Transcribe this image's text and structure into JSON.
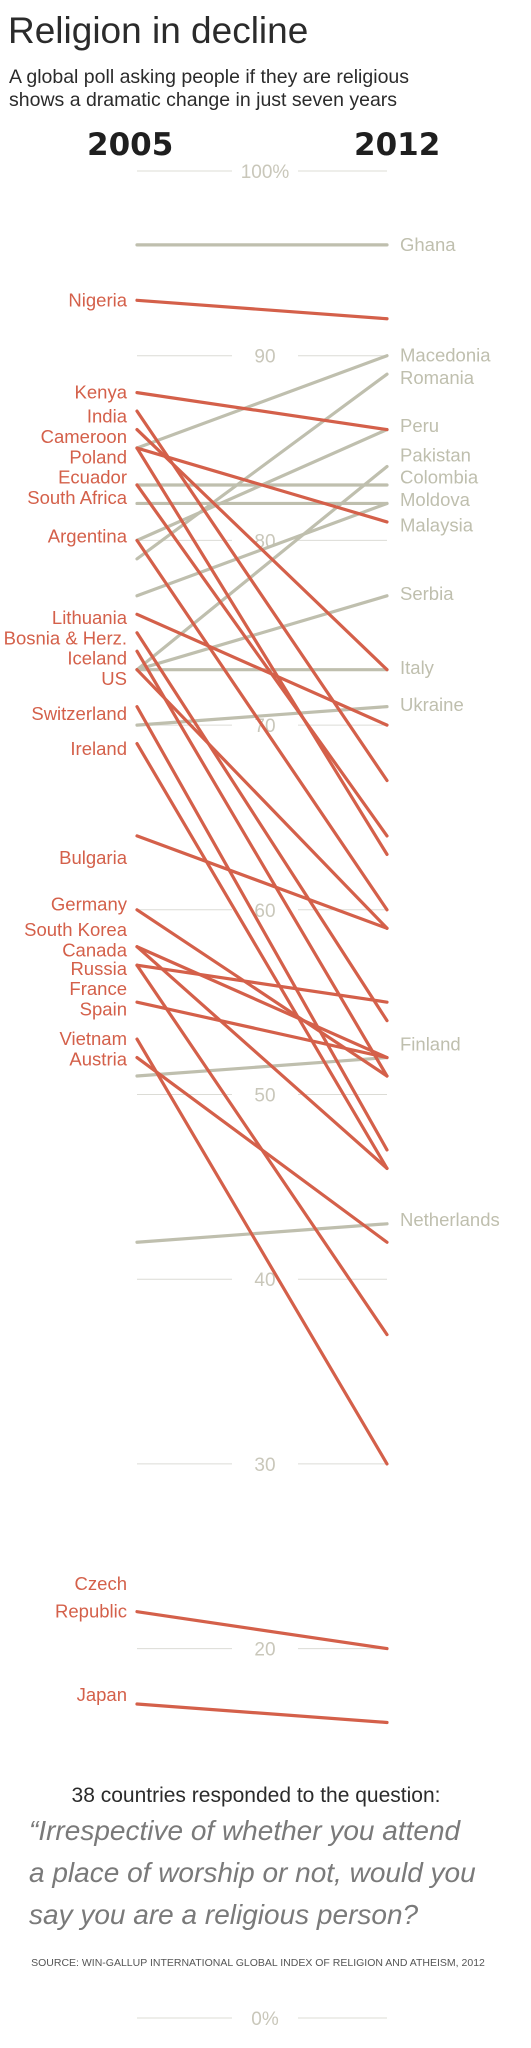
{
  "colors": {
    "decline": "#d4604a",
    "increase": "#bfbfae",
    "ink": "#2b2b2b"
  },
  "chart_data": {
    "type": "line",
    "title": "Religion in decline",
    "subtitle": [
      "A global poll asking people if they are religious",
      "shows a dramatic change in just seven years"
    ],
    "x": [
      "2005",
      "2012"
    ],
    "ylim": [
      0,
      100
    ],
    "y_ticks": [
      {
        "value": 100,
        "label": "100%"
      },
      {
        "value": 90,
        "label": "90"
      },
      {
        "value": 80,
        "label": "80"
      },
      {
        "value": 70,
        "label": "70"
      },
      {
        "value": 60,
        "label": "60"
      },
      {
        "value": 50,
        "label": "50"
      },
      {
        "value": 40,
        "label": "40"
      },
      {
        "value": 30,
        "label": "30"
      },
      {
        "value": 20,
        "label": "20"
      },
      {
        "value": 0,
        "label": "0%"
      }
    ],
    "series": [
      {
        "name": "Ghana",
        "values": [
          96,
          96
        ],
        "trend": "increase",
        "label_side": "right"
      },
      {
        "name": "Nigeria",
        "values": [
          93,
          92
        ],
        "trend": "decline",
        "label_side": "left"
      },
      {
        "name": "Kenya",
        "values": [
          88,
          86
        ],
        "trend": "decline",
        "label_side": "left"
      },
      {
        "name": "India",
        "values": [
          87,
          67
        ],
        "trend": "decline",
        "label_side": "left"
      },
      {
        "name": "Cameroon",
        "values": [
          86,
          73
        ],
        "trend": "decline",
        "label_side": "left"
      },
      {
        "name": "Poland",
        "values": [
          85,
          81
        ],
        "trend": "decline",
        "label_side": "left"
      },
      {
        "name": "Ecuador",
        "values": [
          85,
          63
        ],
        "trend": "decline",
        "label_side": "left"
      },
      {
        "name": "South Africa",
        "values": [
          83,
          64
        ],
        "trend": "decline",
        "label_side": "left"
      },
      {
        "name": "Argentina",
        "values": [
          80,
          60
        ],
        "trend": "decline",
        "label_side": "left"
      },
      {
        "name": "Lithuania",
        "values": [
          76,
          70
        ],
        "trend": "decline",
        "label_side": "left"
      },
      {
        "name": "Bosnia & Herz.",
        "values": [
          75,
          54
        ],
        "trend": "decline",
        "label_side": "left"
      },
      {
        "name": "Iceland",
        "values": [
          74,
          51
        ],
        "trend": "decline",
        "label_side": "left"
      },
      {
        "name": "US",
        "values": [
          73,
          59
        ],
        "trend": "decline",
        "label_side": "left"
      },
      {
        "name": "Switzerland",
        "values": [
          71,
          47
        ],
        "trend": "decline",
        "label_side": "left"
      },
      {
        "name": "Ireland",
        "values": [
          69,
          46
        ],
        "trend": "decline",
        "label_side": "left"
      },
      {
        "name": "Bulgaria",
        "values": [
          64,
          59
        ],
        "trend": "decline",
        "label_side": "left"
      },
      {
        "name": "Germany",
        "values": [
          60,
          51
        ],
        "trend": "decline",
        "label_side": "left"
      },
      {
        "name": "South Korea",
        "values": [
          58,
          52
        ],
        "trend": "decline",
        "label_side": "left"
      },
      {
        "name": "Canada",
        "values": [
          58,
          46
        ],
        "trend": "decline",
        "label_side": "left"
      },
      {
        "name": "Russia",
        "values": [
          57,
          55
        ],
        "trend": "decline",
        "label_side": "left"
      },
      {
        "name": "France",
        "values": [
          57,
          37
        ],
        "trend": "decline",
        "label_side": "left"
      },
      {
        "name": "Spain",
        "values": [
          55,
          52
        ],
        "trend": "decline",
        "label_side": "left"
      },
      {
        "name": "Vietnam",
        "values": [
          53,
          30
        ],
        "trend": "decline",
        "label_side": "left"
      },
      {
        "name": "Austria",
        "values": [
          52,
          42
        ],
        "trend": "decline",
        "label_side": "left"
      },
      {
        "name": "Czech Republic",
        "values": [
          22,
          20
        ],
        "trend": "decline",
        "label_side": "left"
      },
      {
        "name": "Japan",
        "values": [
          17,
          16
        ],
        "trend": "decline",
        "label_side": "left"
      },
      {
        "name": "Macedonia",
        "values": [
          85,
          90
        ],
        "trend": "increase",
        "label_side": "right"
      },
      {
        "name": "Romania",
        "values": [
          79,
          89
        ],
        "trend": "increase",
        "label_side": "right"
      },
      {
        "name": "Peru",
        "values": [
          80,
          86
        ],
        "trend": "increase",
        "label_side": "right"
      },
      {
        "name": "Pakistan",
        "values": [
          73,
          84
        ],
        "trend": "increase",
        "label_side": "right"
      },
      {
        "name": "Colombia",
        "values": [
          83,
          83
        ],
        "trend": "increase",
        "label_side": "right"
      },
      {
        "name": "Moldova",
        "values": [
          77,
          82
        ],
        "trend": "increase",
        "label_side": "right"
      },
      {
        "name": "Malaysia",
        "values": [
          82,
          82
        ],
        "trend": "increase",
        "label_side": "right"
      },
      {
        "name": "Serbia",
        "values": [
          73,
          77
        ],
        "trend": "increase",
        "label_side": "right"
      },
      {
        "name": "Italy",
        "values": [
          73,
          73
        ],
        "trend": "increase",
        "label_side": "right"
      },
      {
        "name": "Ukraine",
        "values": [
          70,
          71
        ],
        "trend": "increase",
        "label_side": "right"
      },
      {
        "name": "Finland",
        "values": [
          51,
          52
        ],
        "trend": "increase",
        "label_side": "right"
      },
      {
        "name": "Netherlands",
        "values": [
          42,
          43
        ],
        "trend": "increase",
        "label_side": "right"
      }
    ],
    "left_labels": [
      {
        "text": "Nigeria",
        "at": 93
      },
      {
        "text": "Kenya",
        "at": 88
      },
      {
        "text": "India",
        "at": 86.7
      },
      {
        "text": "Cameroon",
        "at": 85.6
      },
      {
        "text": "Poland",
        "at": 84.5
      },
      {
        "text": "Ecuador",
        "at": 83.4
      },
      {
        "text": "South Africa",
        "at": 82.3
      },
      {
        "text": "Argentina",
        "at": 80.2
      },
      {
        "text": "Lithuania",
        "at": 75.8
      },
      {
        "text": "Bosnia & Herz.",
        "at": 74.7
      },
      {
        "text": "Iceland",
        "at": 73.6
      },
      {
        "text": "US",
        "at": 72.5
      },
      {
        "text": "Switzerland",
        "at": 70.6
      },
      {
        "text": "Ireland",
        "at": 68.7
      },
      {
        "text": "Bulgaria",
        "at": 62.8
      },
      {
        "text": "Germany",
        "at": 60.3
      },
      {
        "text": "South Korea",
        "at": 58.9
      },
      {
        "text": "Canada",
        "at": 57.8
      },
      {
        "text": "Russia",
        "at": 56.8
      },
      {
        "text": "France",
        "at": 55.7
      },
      {
        "text": "Spain",
        "at": 54.6
      },
      {
        "text": "Vietnam",
        "at": 53.0
      },
      {
        "text": "Austria",
        "at": 51.9
      },
      {
        "text": "Czech",
        "at": 23.5
      },
      {
        "text": "Republic",
        "at": 22.0
      },
      {
        "text": "Japan",
        "at": 17.5
      }
    ],
    "right_labels": [
      {
        "text": "Ghana",
        "at": 96
      },
      {
        "text": "Macedonia",
        "at": 90
      },
      {
        "text": "Romania",
        "at": 88.8
      },
      {
        "text": "Peru",
        "at": 86.2
      },
      {
        "text": "Pakistan",
        "at": 84.6
      },
      {
        "text": "Colombia",
        "at": 83.4
      },
      {
        "text": "Moldova",
        "at": 82.2
      },
      {
        "text": "Malaysia",
        "at": 80.8
      },
      {
        "text": "Serbia",
        "at": 77.1
      },
      {
        "text": "Italy",
        "at": 73.1
      },
      {
        "text": "Ukraine",
        "at": 71.1
      },
      {
        "text": "Finland",
        "at": 52.7
      },
      {
        "text": "Netherlands",
        "at": 43.2
      }
    ],
    "grid": true,
    "legend": "none"
  },
  "footer": {
    "note": "38 countries responded to the question:",
    "quote": [
      "“Irrespective of whether you attend",
      "a place of worship or not, would you",
      "say you are a religious person?"
    ],
    "source": "SOURCE: WIN-GALLUP INTERNATIONAL GLOBAL INDEX OF RELIGION AND ATHEISM, 2012"
  }
}
